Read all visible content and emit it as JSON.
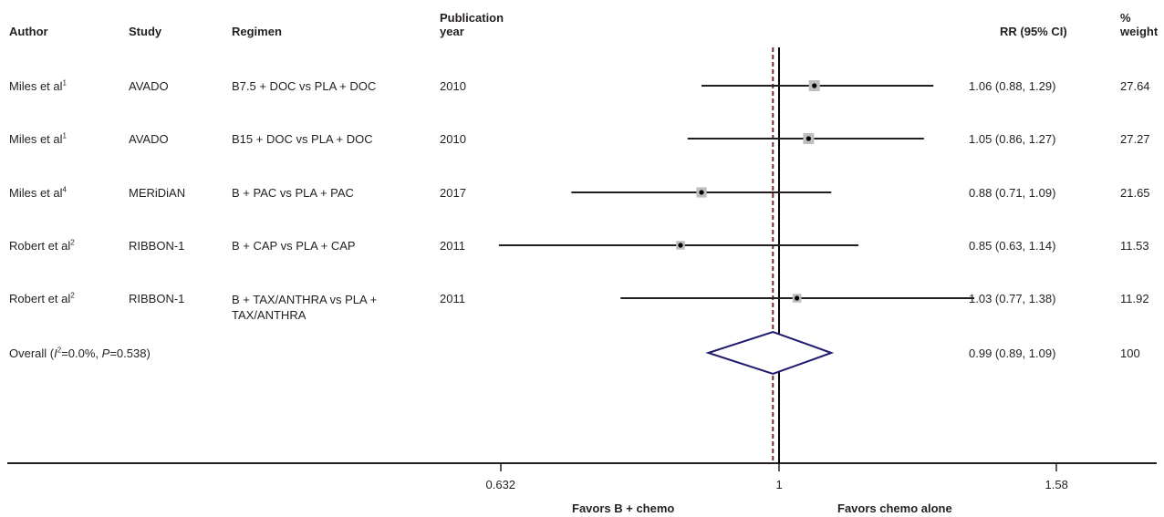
{
  "headers": {
    "author": "Author",
    "study": "Study",
    "regimen": "Regimen",
    "pub_year_line1": "Publication",
    "pub_year_line2": "year",
    "rr": "RR (95% CI)",
    "weight_line1": "%",
    "weight_line2": "weight"
  },
  "rows": [
    {
      "author": "Miles et al",
      "ref": "1",
      "study": "AVADO",
      "regimen": "B7.5 + DOC vs PLA + DOC",
      "year": "2010",
      "rr_text": "1.06 (0.88, 1.29)",
      "weight": "27.64"
    },
    {
      "author": "Miles et al",
      "ref": "1",
      "study": "AVADO",
      "regimen": "B15 + DOC vs PLA + DOC",
      "year": "2010",
      "rr_text": "1.05 (0.86, 1.27)",
      "weight": "27.27"
    },
    {
      "author": "Miles et al",
      "ref": "4",
      "study": "MERiDiAN",
      "regimen": "B + PAC vs PLA + PAC",
      "year": "2017",
      "rr_text": "0.88 (0.71, 1.09)",
      "weight": "21.65"
    },
    {
      "author": "Robert et al",
      "ref": "2",
      "study": "RIBBON-1",
      "regimen": "B + CAP vs PLA + CAP",
      "year": "2011",
      "rr_text": "0.85 (0.63, 1.14)",
      "weight": "11.53"
    },
    {
      "author": "Robert et al",
      "ref": "2",
      "study": "RIBBON-1",
      "regimen": "B + TAX/ANTHRA vs PLA + TAX/ANTHRA",
      "year": "2011",
      "rr_text": "1.03 (0.77, 1.38)",
      "weight": "11.92"
    }
  ],
  "overall": {
    "label_prefix": "Overall (",
    "i2_symbol": "I",
    "i2_sup": "2",
    "i2_value": "=0.0%, ",
    "p_symbol": "P",
    "p_value": "=0.538)",
    "rr_text": "0.99 (0.89, 1.09)",
    "weight": "100"
  },
  "axis": {
    "tick_labels": [
      "0.632",
      "1",
      "1.58"
    ],
    "favors_left": "Favors B + chemo",
    "favors_right": "Favors chemo alone"
  },
  "chart_data": {
    "type": "forest",
    "scale": "log",
    "null_value": 1,
    "xlim": [
      0.41,
      2.05
    ],
    "ticks": [
      0.632,
      1,
      1.58
    ],
    "tick_labels": [
      "0.632",
      "1",
      "1.58"
    ],
    "studies": [
      {
        "rr": 1.06,
        "lo": 0.88,
        "hi": 1.29,
        "weight": 27.64
      },
      {
        "rr": 1.05,
        "lo": 0.86,
        "hi": 1.27,
        "weight": 27.27
      },
      {
        "rr": 0.88,
        "lo": 0.71,
        "hi": 1.09,
        "weight": 21.65
      },
      {
        "rr": 0.85,
        "lo": 0.63,
        "hi": 1.14,
        "weight": 11.53
      },
      {
        "rr": 1.03,
        "lo": 0.77,
        "hi": 1.38,
        "weight": 11.92
      }
    ],
    "overall": {
      "rr": 0.99,
      "lo": 0.89,
      "hi": 1.09,
      "weight": 100
    },
    "colors": {
      "ci_line": "#231f20",
      "box": "#bcbec0",
      "diamond": "#1f1a6e",
      "overall_line": "#7b2b2b"
    }
  }
}
